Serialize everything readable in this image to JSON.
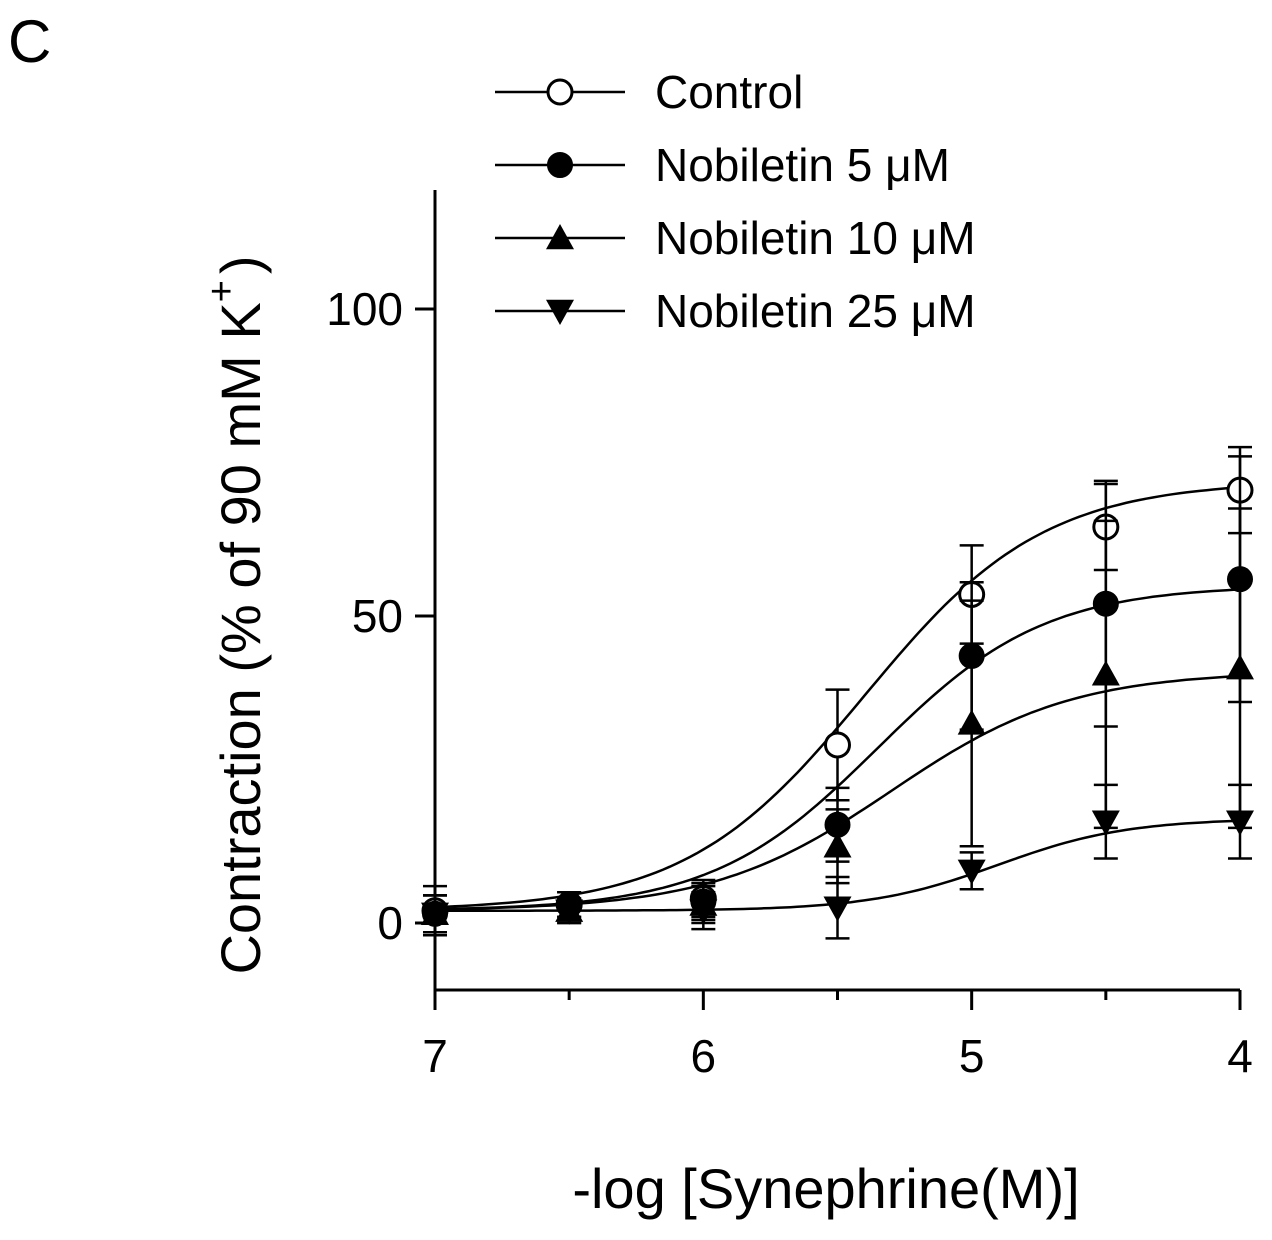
{
  "panel_label": "C",
  "chart_data": {
    "type": "line",
    "xlabel": "-log [Synephrine(M)]",
    "ylabel": "Contraction (% of 90 mM K",
    "ylabel_superscript": "+",
    "ylabel_close": ")",
    "xlim": [
      7,
      4
    ],
    "x_reversed": true,
    "ylim": [
      -11,
      120
    ],
    "xticks": [
      7,
      6,
      5,
      4
    ],
    "xtick_labels": [
      "7",
      "6",
      "5",
      "4"
    ],
    "yticks": [
      0,
      50,
      100
    ],
    "ytick_labels": [
      "0",
      "50",
      "100"
    ],
    "x_minor_ticks": [
      6.5,
      5.5,
      4.5
    ],
    "grid": false,
    "legend_position": "top",
    "series": [
      {
        "name": "Control",
        "marker": "circle-open",
        "x": [
          7,
          6.5,
          6,
          5.5,
          5,
          4.5,
          4
        ],
        "y": [
          2,
          3,
          4,
          29,
          53.5,
          64.5,
          70.5
        ],
        "err": [
          4,
          2,
          3,
          9,
          8,
          7,
          7
        ],
        "fit": {
          "bottom": 2,
          "top": 72,
          "logec50": 5.4,
          "hill": 1.3
        }
      },
      {
        "name": "Nobiletin 5 μM",
        "marker": "circle-filled",
        "x": [
          7,
          6.5,
          6,
          5.5,
          5,
          4.5,
          4
        ],
        "y": [
          1.5,
          3,
          3.5,
          16,
          43.5,
          52,
          56
        ],
        "err": [
          3,
          2,
          3,
          6,
          12,
          20,
          20
        ],
        "fit": {
          "bottom": 2,
          "top": 55,
          "logec50": 5.35,
          "hill": 1.4
        }
      },
      {
        "name": "Nobiletin 10 μM",
        "marker": "triangle-up",
        "x": [
          7,
          6.5,
          6,
          5.5,
          5,
          4.5,
          4
        ],
        "y": [
          1.5,
          2,
          3,
          12.5,
          32.5,
          40.5,
          41.5
        ],
        "err": [
          3,
          2,
          3,
          6,
          20,
          25,
          26
        ],
        "fit": {
          "bottom": 2,
          "top": 41,
          "logec50": 5.3,
          "hill": 1.3
        }
      },
      {
        "name": "Nobiletin 25 μM",
        "marker": "triangle-down",
        "x": [
          7,
          6.5,
          6,
          5.5,
          5,
          4.5,
          4
        ],
        "y": [
          1.5,
          2,
          2,
          2.5,
          8.5,
          16.5,
          16.5
        ],
        "err": [
          3,
          2,
          3,
          5,
          3,
          6,
          6
        ],
        "fit": {
          "bottom": 2,
          "top": 17,
          "logec50": 4.9,
          "hill": 1.8
        }
      }
    ]
  }
}
